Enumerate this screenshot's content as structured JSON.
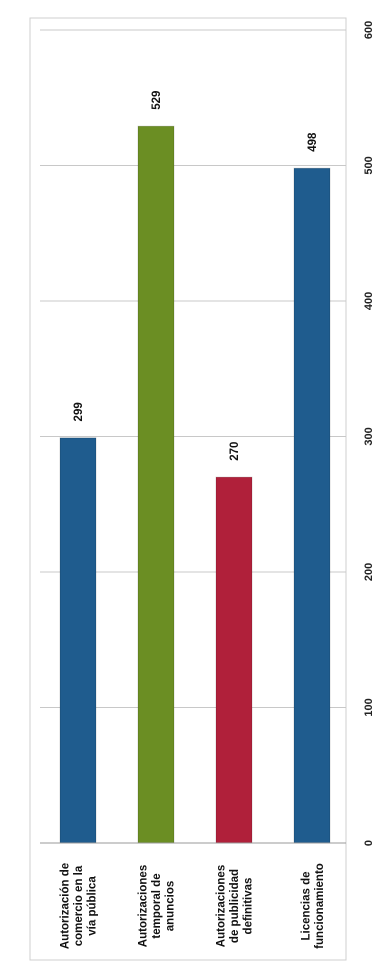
{
  "chart_data": {
    "type": "bar",
    "orientation": "horizontal",
    "categories": [
      [
        "Autorización de",
        "comercio en la",
        "vía pública"
      ],
      [
        "Autorizaciones",
        "temporal de",
        "anuncios"
      ],
      [
        "Autorizaciones",
        "de publicidad",
        "definitivas"
      ],
      [
        "Licencias de",
        "funcionamiento"
      ]
    ],
    "values": [
      299,
      529,
      270,
      498
    ],
    "colors": [
      "#1f5c8e",
      "#6b8e23",
      "#b0203a",
      "#1f5c8e"
    ],
    "data_labels": [
      "299",
      "529",
      "270",
      "498"
    ],
    "value_axis": {
      "min": 0,
      "max": 600,
      "ticks": [
        "0",
        "100",
        "200",
        "300",
        "400",
        "500",
        "600"
      ]
    },
    "grid": true,
    "rotated": true,
    "title": "",
    "xlabel": "",
    "ylabel": ""
  }
}
